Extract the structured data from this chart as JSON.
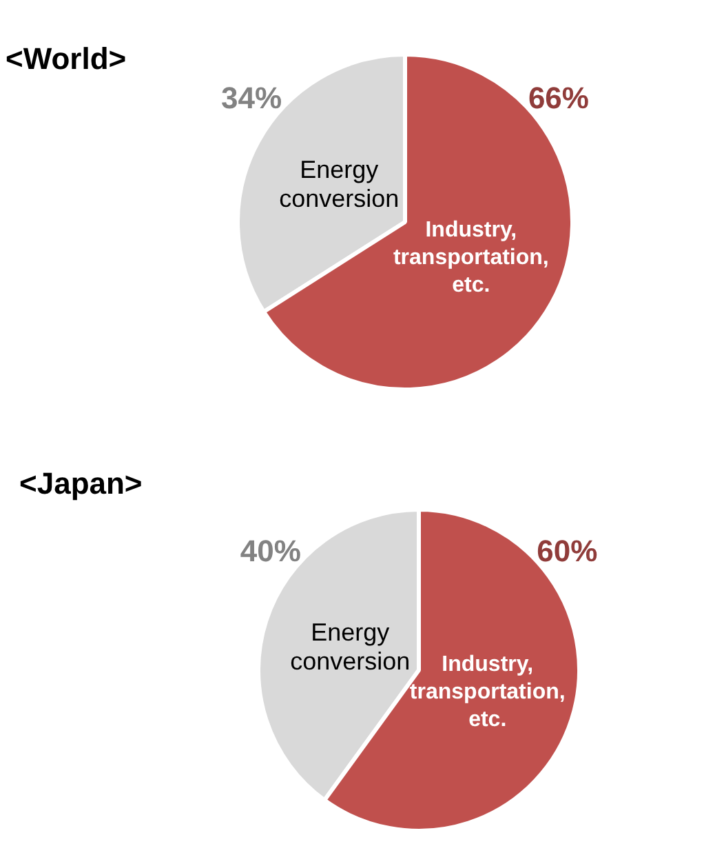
{
  "chart_data": [
    {
      "type": "pie",
      "title": "<World>",
      "categories": [
        "Energy conversion",
        "Industry, transportation, etc."
      ],
      "values": [
        34,
        66
      ],
      "colors": [
        "#d9d9d9",
        "#c0504d"
      ],
      "value_labels": [
        "34%",
        "66%"
      ],
      "legend": false
    },
    {
      "type": "pie",
      "title": "<Japan>",
      "categories": [
        "Energy conversion",
        "Industry, transportation, etc."
      ],
      "values": [
        40,
        60
      ],
      "colors": [
        "#d9d9d9",
        "#c0504d"
      ],
      "value_labels": [
        "40%",
        "60%"
      ],
      "legend": false
    }
  ]
}
